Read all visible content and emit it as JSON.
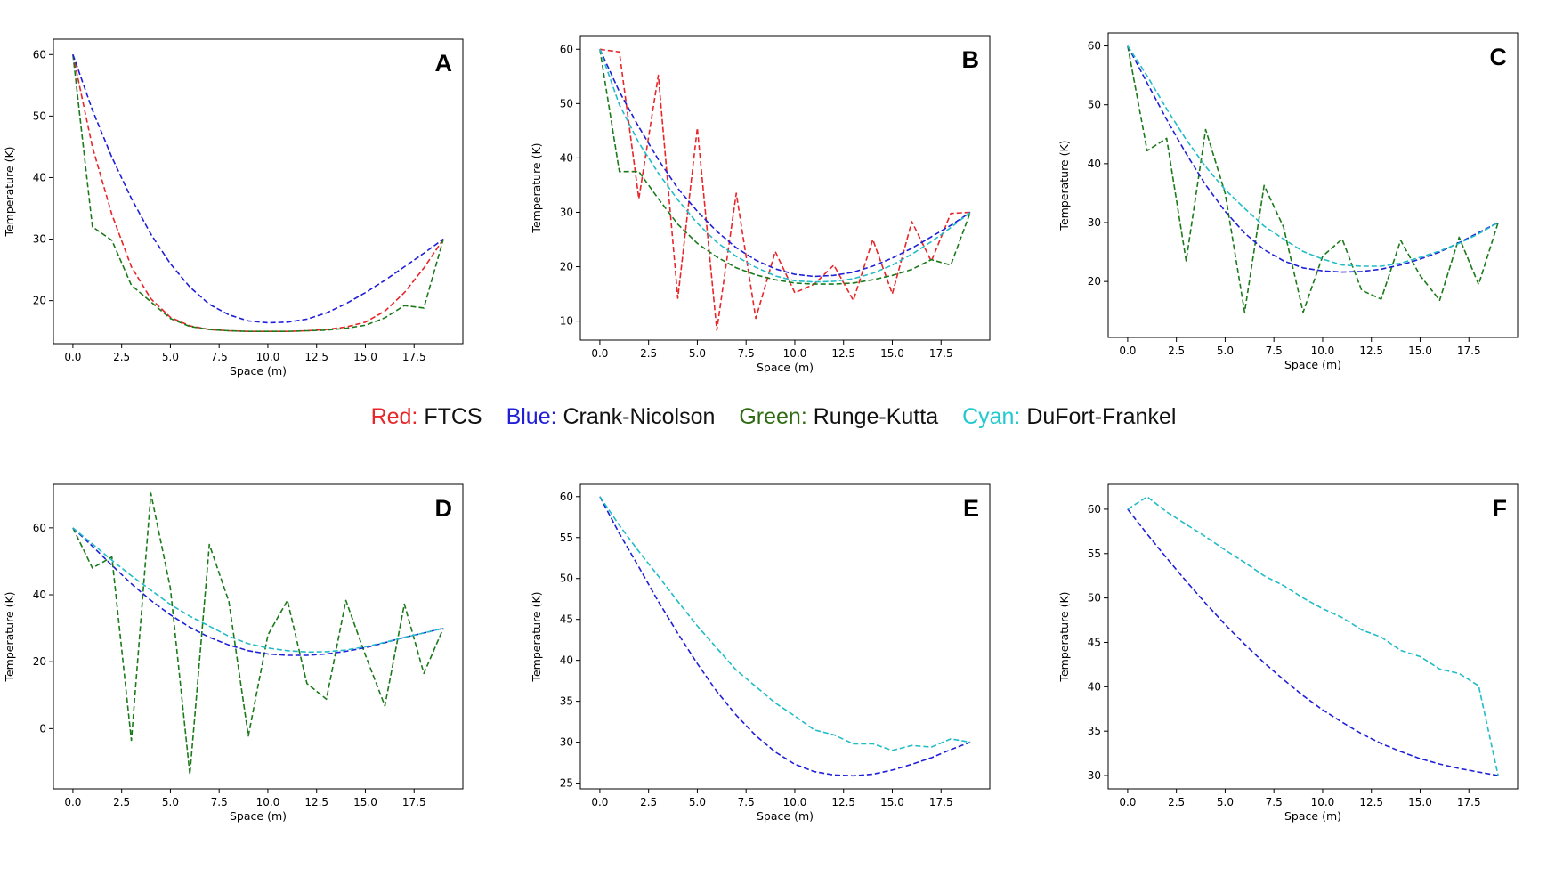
{
  "legend": {
    "entries": [
      {
        "key": "Red:",
        "name": "FTCS",
        "color": "#e8262a"
      },
      {
        "key": "Blue:",
        "name": "Crank-Nicolson",
        "color": "#1f1fd8"
      },
      {
        "key": "Green:",
        "name": "Runge-Kutta",
        "color": "#2e6b12"
      },
      {
        "key": "Cyan:",
        "name": "DuFort-Frankel",
        "color": "#22c9cf"
      }
    ]
  },
  "colors": {
    "red": "#e8262a",
    "blue": "#1f1fd8",
    "green": "#1a7a1a",
    "cyan": "#22bcc6"
  },
  "chart_data": [
    {
      "type": "line",
      "panel_label": "A",
      "xlabel": "Space (m)",
      "ylabel": "Temperature (K)",
      "xlim": [
        -1,
        20
      ],
      "ylim": [
        13,
        62.5
      ],
      "xticks": [
        "0.0",
        "2.5",
        "5.0",
        "7.5",
        "10.0",
        "12.5",
        "15.0",
        "17.5"
      ],
      "xtick_values": [
        0,
        2.5,
        5,
        7.5,
        10,
        12.5,
        15,
        17.5
      ],
      "yticks": [
        "20",
        "30",
        "40",
        "50",
        "60"
      ],
      "ytick_values": [
        20,
        30,
        40,
        50,
        60
      ],
      "x": [
        0,
        1,
        2,
        3,
        4,
        5,
        6,
        7,
        8,
        9,
        10,
        11,
        12,
        13,
        14,
        15,
        16,
        17,
        18,
        19
      ],
      "series": [
        {
          "color": "red",
          "values": [
            60,
            45,
            34,
            25.5,
            20.3,
            17.3,
            15.9,
            15.3,
            15.1,
            15.0,
            15.0,
            15.0,
            15.1,
            15.3,
            15.7,
            16.5,
            18.3,
            21.3,
            25.3,
            30
          ]
        },
        {
          "color": "green",
          "values": [
            60,
            32,
            29.8,
            22.5,
            19.8,
            17.1,
            15.8,
            15.3,
            15.1,
            15.0,
            15.0,
            15.0,
            15.1,
            15.2,
            15.5,
            16.0,
            17.2,
            19.2,
            18.8,
            30
          ]
        },
        {
          "color": "blue",
          "values": [
            60,
            51,
            43.3,
            36.6,
            30.8,
            26.0,
            22.2,
            19.4,
            17.7,
            16.7,
            16.4,
            16.5,
            17.0,
            18.0,
            19.5,
            21.3,
            23.3,
            25.5,
            27.7,
            30
          ]
        }
      ]
    },
    {
      "type": "line",
      "panel_label": "B",
      "xlabel": "Space (m)",
      "ylabel": "Temperature (K)",
      "xlim": [
        -1,
        20
      ],
      "ylim": [
        6.5,
        62.5
      ],
      "xticks": [
        "0.0",
        "2.5",
        "5.0",
        "7.5",
        "10.0",
        "12.5",
        "15.0",
        "17.5"
      ],
      "xtick_values": [
        0,
        2.5,
        5,
        7.5,
        10,
        12.5,
        15,
        17.5
      ],
      "yticks": [
        "10",
        "20",
        "30",
        "40",
        "50",
        "60"
      ],
      "ytick_values": [
        10,
        20,
        30,
        40,
        50,
        60
      ],
      "x": [
        0,
        1,
        2,
        3,
        4,
        5,
        6,
        7,
        8,
        9,
        10,
        11,
        12,
        13,
        14,
        15,
        16,
        17,
        18,
        19
      ],
      "series": [
        {
          "color": "red",
          "values": [
            60,
            59.5,
            32.5,
            55.2,
            14.2,
            45.5,
            8.3,
            33.5,
            10.5,
            22.8,
            15.2,
            16.8,
            20.3,
            13.8,
            25.0,
            15.0,
            28.3,
            21.0,
            29.8,
            30
          ]
        },
        {
          "color": "green",
          "values": [
            60,
            37.5,
            37.5,
            32.5,
            27.8,
            24.3,
            21.8,
            19.8,
            18.5,
            17.6,
            17.0,
            16.8,
            16.8,
            17.0,
            17.6,
            18.4,
            19.5,
            21.3,
            20.3,
            30
          ]
        },
        {
          "color": "blue",
          "values": [
            60,
            52.2,
            45.7,
            39.7,
            34.4,
            30.2,
            26.5,
            23.5,
            21.2,
            19.6,
            18.6,
            18.2,
            18.4,
            19.0,
            20.1,
            21.6,
            23.4,
            25.5,
            27.6,
            30
          ]
        },
        {
          "color": "cyan",
          "values": [
            60,
            49.8,
            42.8,
            37.2,
            32.3,
            28.0,
            24.5,
            21.9,
            19.9,
            18.3,
            17.4,
            17.2,
            17.3,
            17.8,
            18.8,
            20.3,
            22.3,
            24.6,
            27.2,
            30
          ]
        }
      ]
    },
    {
      "type": "line",
      "panel_label": "C",
      "xlabel": "Space (m)",
      "ylabel": "Temperature (K)",
      "xlim": [
        -1,
        20
      ],
      "ylim": [
        10.5,
        62.2
      ],
      "xticks": [
        "0.0",
        "2.5",
        "5.0",
        "7.5",
        "10.0",
        "12.5",
        "15.0",
        "17.5"
      ],
      "xtick_values": [
        0,
        2.5,
        5,
        7.5,
        10,
        12.5,
        15,
        17.5
      ],
      "yticks": [
        "20",
        "30",
        "40",
        "50",
        "60"
      ],
      "ytick_values": [
        20,
        30,
        40,
        50,
        60
      ],
      "x": [
        0,
        1,
        2,
        3,
        4,
        5,
        6,
        7,
        8,
        9,
        10,
        11,
        12,
        13,
        14,
        15,
        16,
        17,
        18,
        19
      ],
      "series": [
        {
          "color": "green",
          "values": [
            60,
            42.2,
            44.3,
            23.5,
            45.8,
            35.0,
            14.8,
            36.3,
            29.2,
            14.8,
            24.3,
            27.2,
            18.5,
            17.0,
            27.0,
            21.0,
            16.8,
            27.5,
            19.5,
            30
          ]
        },
        {
          "color": "blue",
          "values": [
            60,
            53.7,
            47.5,
            41.7,
            36.4,
            31.9,
            28.2,
            25.4,
            23.5,
            22.3,
            21.8,
            21.6,
            21.7,
            22.1,
            22.8,
            23.8,
            25.0,
            26.6,
            28.3,
            30
          ]
        },
        {
          "color": "cyan",
          "values": [
            60,
            54.9,
            49.3,
            44.1,
            39.5,
            35.6,
            32.4,
            29.4,
            27.2,
            25.1,
            23.8,
            22.8,
            22.6,
            22.6,
            23.1,
            24.1,
            25.2,
            26.5,
            28.1,
            30
          ]
        }
      ]
    },
    {
      "type": "line",
      "panel_label": "D",
      "xlabel": "Space (m)",
      "ylabel": "Temperature (K)",
      "xlim": [
        -1,
        20
      ],
      "ylim": [
        -18,
        73
      ],
      "xticks": [
        "0.0",
        "2.5",
        "5.0",
        "7.5",
        "10.0",
        "12.5",
        "15.0",
        "17.5"
      ],
      "xtick_values": [
        0,
        2.5,
        5,
        7.5,
        10,
        12.5,
        15,
        17.5
      ],
      "yticks": [
        "0",
        "20",
        "40",
        "60"
      ],
      "ytick_values": [
        0,
        20,
        40,
        60
      ],
      "x": [
        0,
        1,
        2,
        3,
        4,
        5,
        6,
        7,
        8,
        9,
        10,
        11,
        12,
        13,
        14,
        15,
        16,
        17,
        18,
        19
      ],
      "series": [
        {
          "color": "green",
          "values": [
            60,
            48,
            51.3,
            -3.5,
            70.3,
            42,
            -13.7,
            55,
            38,
            -2.2,
            28,
            38.3,
            13.5,
            8.8,
            38.3,
            22,
            6.8,
            37.2,
            16.5,
            30
          ]
        },
        {
          "color": "blue",
          "values": [
            60,
            54.5,
            48.8,
            43.3,
            38.3,
            34,
            30.3,
            27.3,
            25,
            23.3,
            22.3,
            21.9,
            21.9,
            22.3,
            23.1,
            24.2,
            25.7,
            27.3,
            28.6,
            30
          ]
        },
        {
          "color": "cyan",
          "values": [
            60,
            55.2,
            50.3,
            45.7,
            41.4,
            37.1,
            33.6,
            30.6,
            27.6,
            25.4,
            24.1,
            23.3,
            22.9,
            23.0,
            23.5,
            24.5,
            25.8,
            27.3,
            28.6,
            30
          ]
        }
      ]
    },
    {
      "type": "line",
      "panel_label": "E",
      "xlabel": "Space (m)",
      "ylabel": "Temperature (K)",
      "xlim": [
        -1,
        20
      ],
      "ylim": [
        24.3,
        61.5
      ],
      "xticks": [
        "0.0",
        "2.5",
        "5.0",
        "7.5",
        "10.0",
        "12.5",
        "15.0",
        "17.5"
      ],
      "xtick_values": [
        0,
        2.5,
        5,
        7.5,
        10,
        12.5,
        15,
        17.5
      ],
      "yticks": [
        "25",
        "30",
        "35",
        "40",
        "45",
        "50",
        "55",
        "60"
      ],
      "ytick_values": [
        25,
        30,
        35,
        40,
        45,
        50,
        55,
        60
      ],
      "x": [
        0,
        1,
        2,
        3,
        4,
        5,
        6,
        7,
        8,
        9,
        10,
        11,
        12,
        13,
        14,
        15,
        16,
        17,
        18,
        19
      ],
      "series": [
        {
          "color": "blue",
          "values": [
            60,
            55.5,
            51.4,
            47.2,
            43.3,
            39.6,
            36.2,
            33.3,
            30.8,
            28.8,
            27.3,
            26.4,
            26.0,
            25.9,
            26.1,
            26.6,
            27.3,
            28.1,
            29.1,
            30
          ]
        },
        {
          "color": "cyan",
          "values": [
            60,
            56.5,
            53.3,
            50.3,
            47.2,
            44.2,
            41.5,
            38.8,
            36.8,
            34.8,
            33.2,
            31.5,
            30.9,
            29.8,
            29.8,
            29.0,
            29.6,
            29.4,
            30.4,
            30
          ]
        }
      ]
    },
    {
      "type": "line",
      "panel_label": "F",
      "xlabel": "Space (m)",
      "ylabel": "Temperature (K)",
      "xlim": [
        -1,
        20
      ],
      "ylim": [
        28.5,
        62.8
      ],
      "xticks": [
        "0.0",
        "2.5",
        "5.0",
        "7.5",
        "10.0",
        "12.5",
        "15.0",
        "17.5"
      ],
      "xtick_values": [
        0,
        2.5,
        5,
        7.5,
        10,
        12.5,
        15,
        17.5
      ],
      "yticks": [
        "30",
        "35",
        "40",
        "45",
        "50",
        "55",
        "60"
      ],
      "ytick_values": [
        30,
        35,
        40,
        45,
        50,
        55,
        60
      ],
      "x": [
        0,
        1,
        2,
        3,
        4,
        5,
        6,
        7,
        8,
        9,
        10,
        11,
        12,
        13,
        14,
        15,
        16,
        17,
        18,
        19
      ],
      "series": [
        {
          "color": "blue",
          "values": [
            60,
            57.2,
            54.5,
            51.9,
            49.4,
            47.0,
            44.8,
            42.7,
            40.8,
            39.0,
            37.4,
            36.0,
            34.7,
            33.6,
            32.7,
            31.9,
            31.3,
            30.8,
            30.4,
            30
          ]
        },
        {
          "color": "cyan",
          "values": [
            60,
            61.4,
            59.7,
            58.3,
            56.9,
            55.4,
            54.0,
            52.5,
            51.4,
            50.0,
            48.8,
            47.8,
            46.4,
            45.6,
            44.1,
            43.4,
            42.0,
            41.5,
            40.1,
            30
          ]
        }
      ]
    }
  ]
}
